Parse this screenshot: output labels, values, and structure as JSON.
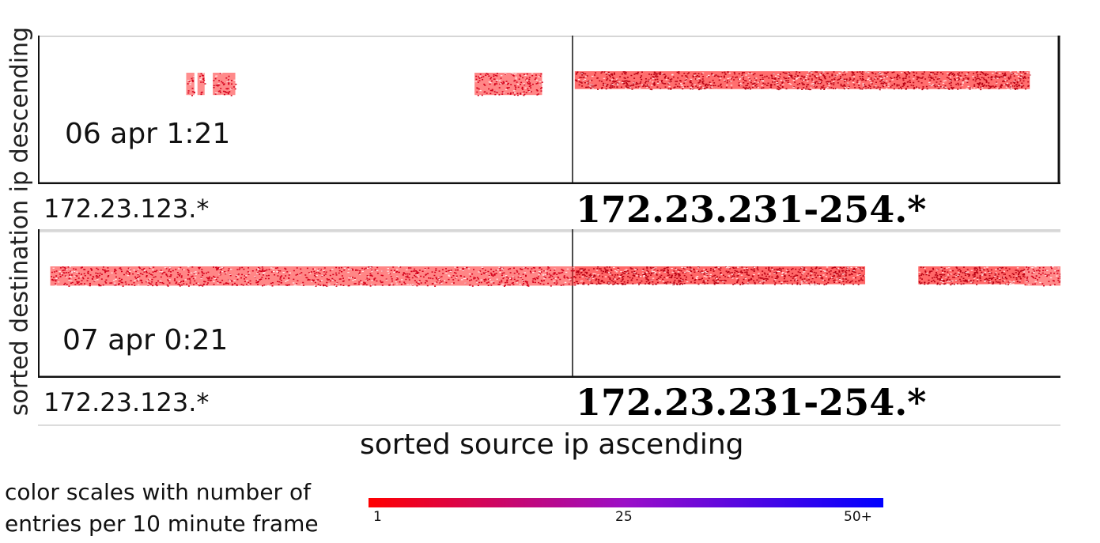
{
  "chart_data": {
    "type": "heatmap",
    "ylabel": "sorted destination ip descending",
    "xlabel": "sorted source ip ascending",
    "panels": [
      {
        "timestamp": "06 apr 1:21",
        "x_segments": [
          "172.23.123.*",
          "172.23.231-254.*"
        ],
        "bands": [
          {
            "x": [
              0.145,
              0.153
            ],
            "y": [
              0.25,
              0.4
            ],
            "density": 0.55
          },
          {
            "x": [
              0.156,
              0.163
            ],
            "y": [
              0.25,
              0.4
            ],
            "density": 0.55
          },
          {
            "x": [
              0.171,
              0.193
            ],
            "y": [
              0.25,
              0.4
            ],
            "density": 0.6
          },
          {
            "x": [
              0.427,
              0.493
            ],
            "y": [
              0.25,
              0.4
            ],
            "density": 0.65
          },
          {
            "x": [
              0.525,
              0.97
            ],
            "y": [
              0.24,
              0.36
            ],
            "density": 0.85
          }
        ]
      },
      {
        "timestamp": "07 apr 0:21",
        "x_segments": [
          "172.23.123.*",
          "172.23.231-254.*"
        ],
        "bands": [
          {
            "x": [
              0.012,
              0.525
            ],
            "y": [
              0.25,
              0.38
            ],
            "density": 0.65
          },
          {
            "x": [
              0.525,
              0.809
            ],
            "y": [
              0.25,
              0.37
            ],
            "density": 0.92
          },
          {
            "x": [
              0.861,
              0.965
            ],
            "y": [
              0.25,
              0.37
            ],
            "density": 0.92
          },
          {
            "x": [
              0.965,
              1.0
            ],
            "y": [
              0.25,
              0.38
            ],
            "density": 0.6
          }
        ]
      }
    ],
    "color_scale": {
      "title_lines": [
        "color scales with number of",
        "entries per 10 minute frame"
      ],
      "ticks": [
        "1",
        "25",
        "50+"
      ],
      "colors": [
        "#ff0000",
        "#9b0ec8",
        "#0000ff"
      ]
    }
  }
}
